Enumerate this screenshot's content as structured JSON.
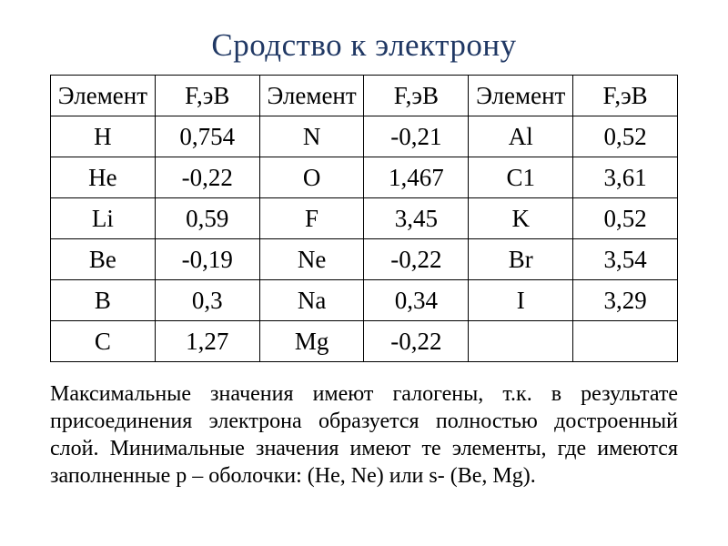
{
  "title": "Сродство к электрону",
  "title_color": "#203864",
  "title_fontsize": 35,
  "background_color": "#ffffff",
  "text_color": "#000000",
  "table": {
    "type": "table",
    "border_color": "#000000",
    "cell_fontsize": 27,
    "columns": [
      "Элемент",
      "F,эВ",
      "Элемент",
      "F,эВ",
      "Элемент",
      "F,эВ"
    ],
    "rows": [
      [
        "H",
        "0,754",
        "N",
        "-0,21",
        "Al",
        "0,52"
      ],
      [
        "He",
        "-0,22",
        "O",
        "1,467",
        "C1",
        "3,61"
      ],
      [
        "Li",
        "0,59",
        "F",
        "3,45",
        "K",
        "0,52"
      ],
      [
        "Be",
        "-0,19",
        "Ne",
        "-0,22",
        "Br",
        "3,54"
      ],
      [
        "B",
        "0,3",
        "Na",
        "0,34",
        "I",
        "3,29"
      ],
      [
        "C",
        "1,27",
        "Mg",
        "-0,22",
        "",
        ""
      ]
    ]
  },
  "description": {
    "text": "Максимальные значения имеют галогены, т.к. в результате присоединения электрона образуется полностью достроенный слой. Минимальные значения имеют те элементы, где имеются заполненные p – оболочки: (He, Ne) или s- (Be, Mg).",
    "fontsize": 24
  }
}
